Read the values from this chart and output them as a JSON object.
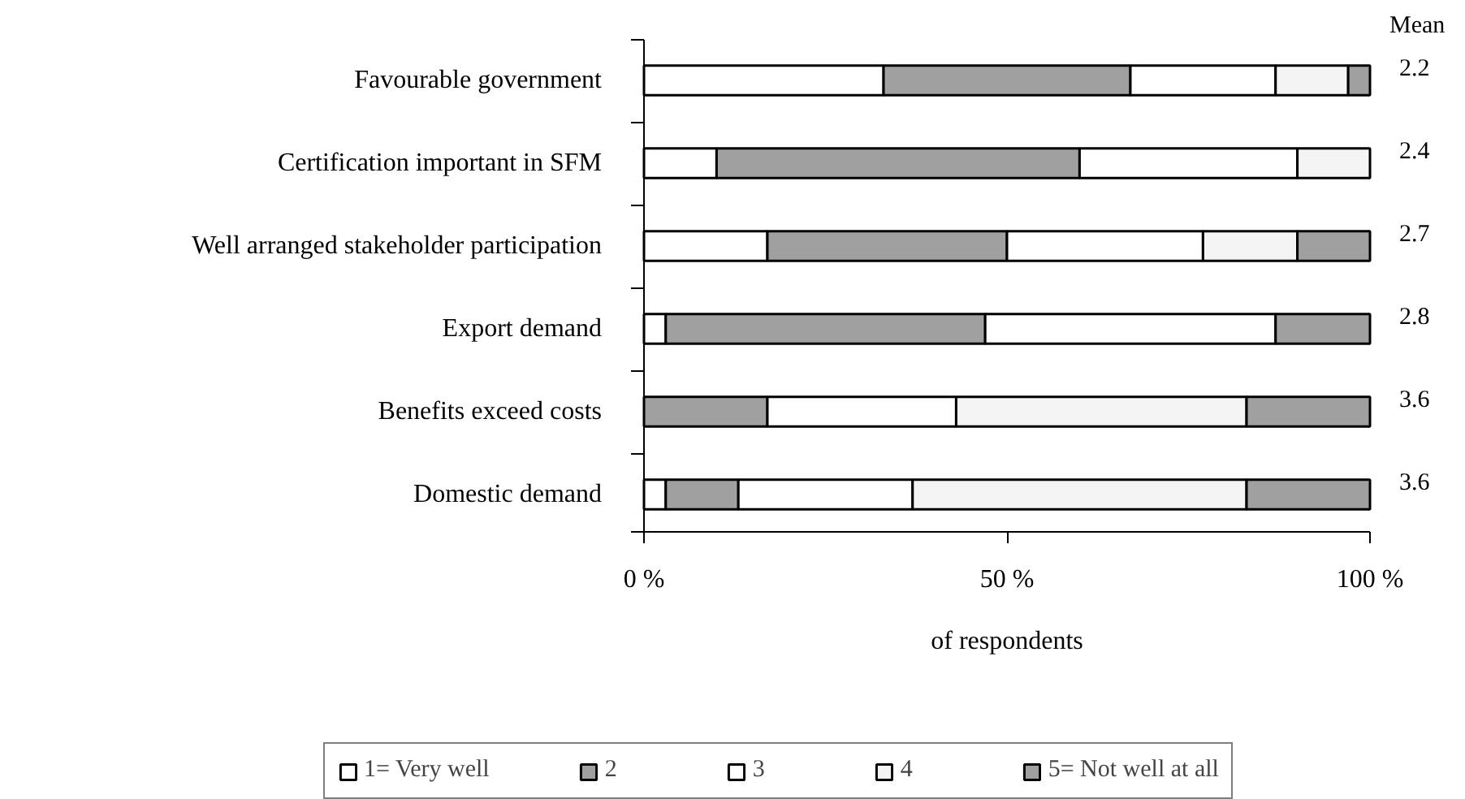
{
  "chart_data": {
    "type": "bar",
    "orientation": "horizontal",
    "stacked": true,
    "xlabel": "of respondents",
    "categories": [
      "Favourable government",
      "Certification important in SFM",
      "Well arranged stakeholder participation",
      "Export demand",
      "Benefits exceed costs",
      "Domestic demand"
    ],
    "series": [
      {
        "name": "1= Very well",
        "color": "#ffffff",
        "values": [
          33,
          10,
          17,
          3,
          0,
          3
        ]
      },
      {
        "name": "2",
        "color": "#a0a0a0",
        "values": [
          34,
          50,
          33,
          44,
          17,
          10
        ]
      },
      {
        "name": "3",
        "color": "#ffffff",
        "values": [
          20,
          30,
          27,
          40,
          26,
          24
        ]
      },
      {
        "name": "4",
        "color": "#f4f4f4",
        "values": [
          10,
          10,
          13,
          0,
          40,
          46
        ]
      },
      {
        "name": "5= Not well at all",
        "color": "#a0a0a0",
        "values": [
          3,
          0,
          10,
          13,
          17,
          17
        ]
      }
    ],
    "xlim": [
      0,
      100
    ],
    "xticks": [
      {
        "value": 0,
        "label": "0 %"
      },
      {
        "value": 50,
        "label": "50 %"
      },
      {
        "value": 100,
        "label": "100 %"
      }
    ],
    "grid": false,
    "legend": "bottom",
    "annotations": [
      "Mean",
      "2.2",
      "2.4",
      "2.7",
      "2.8",
      "3.6",
      "3.6"
    ]
  }
}
